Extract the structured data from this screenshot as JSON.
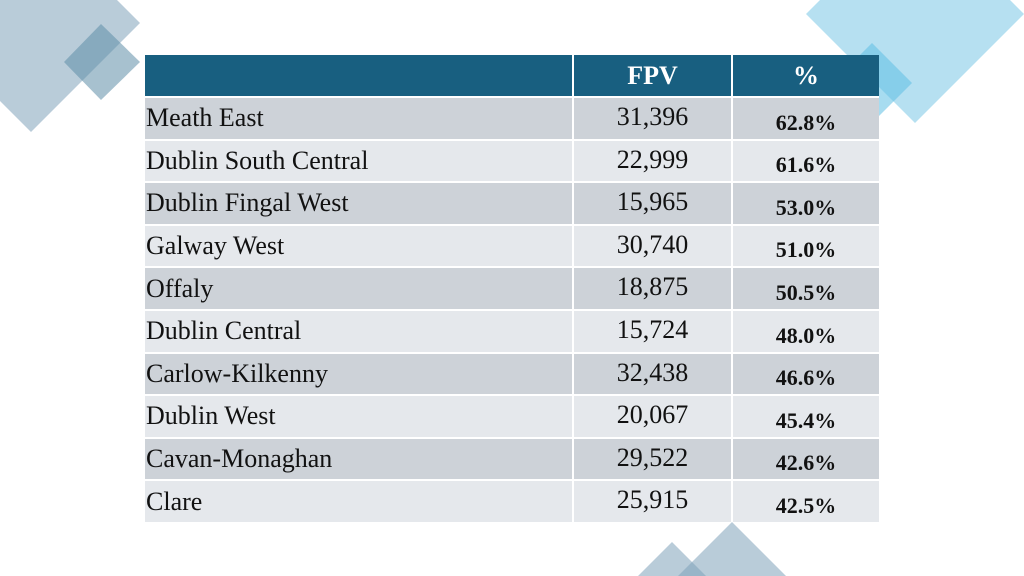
{
  "colors": {
    "header": "#185f80",
    "row_odd": "#cdd2d8",
    "row_even": "#e5e8ec",
    "deco_gray": "#9db8c8",
    "deco_blue": "#8fd0ea"
  },
  "table": {
    "headers": [
      "",
      "FPV",
      "%"
    ],
    "rows": [
      {
        "name": "Meath East",
        "fpv": "31,396",
        "pct": "62.8%"
      },
      {
        "name": "Dublin South Central",
        "fpv": "22,999",
        "pct": "61.6%"
      },
      {
        "name": "Dublin Fingal West",
        "fpv": "15,965",
        "pct": "53.0%"
      },
      {
        "name": "Galway West",
        "fpv": "30,740",
        "pct": "51.0%"
      },
      {
        "name": "Offaly",
        "fpv": "18,875",
        "pct": "50.5%"
      },
      {
        "name": "Dublin Central",
        "fpv": "15,724",
        "pct": "48.0%"
      },
      {
        "name": "Carlow-Kilkenny",
        "fpv": "32,438",
        "pct": "46.6%"
      },
      {
        "name": "Dublin West",
        "fpv": "20,067",
        "pct": "45.4%"
      },
      {
        "name": "Cavan-Monaghan",
        "fpv": "29,522",
        "pct": "42.6%"
      },
      {
        "name": "Clare",
        "fpv": "25,915",
        "pct": "42.5%"
      }
    ]
  }
}
